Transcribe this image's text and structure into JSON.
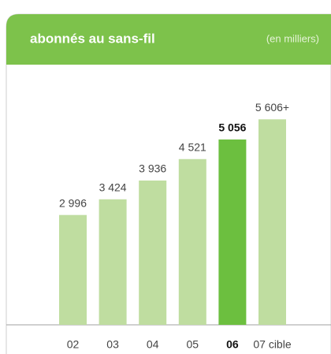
{
  "chart_data": {
    "type": "bar",
    "title": "abonnés au sans-fil",
    "subtitle": "(en milliers)",
    "categories": [
      "02",
      "03",
      "04",
      "05",
      "06",
      "07 cible"
    ],
    "values": [
      2996,
      3424,
      3936,
      4521,
      5056,
      5606
    ],
    "value_labels": [
      "2 996",
      "3 424",
      "3 936",
      "4 521",
      "5 056",
      "5 606+"
    ],
    "colors": [
      "#bfdda0",
      "#bfdda0",
      "#bfdda0",
      "#bfdda0",
      "#6cbf3f",
      "#bfdda0"
    ],
    "highlight_index": 4,
    "ylim": [
      0,
      6000
    ]
  }
}
